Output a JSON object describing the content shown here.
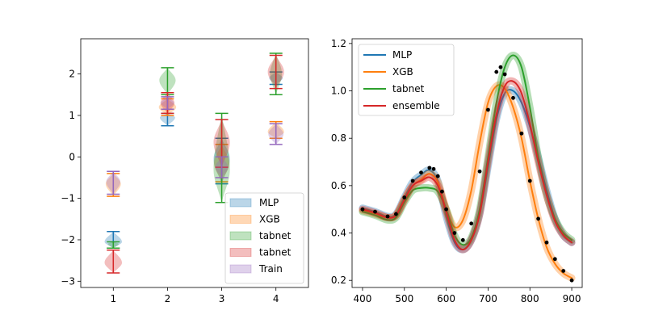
{
  "chart_data": [
    {
      "type": "violin",
      "categories": [
        "1",
        "2",
        "3",
        "4"
      ],
      "x_ticks": [
        "1",
        "2",
        "3",
        "4"
      ],
      "y_ticks": [
        "−3",
        "−2",
        "−1",
        "0",
        "1",
        "2"
      ],
      "xlim": [
        0.4,
        4.6
      ],
      "ylim": [
        -3.15,
        2.85
      ],
      "legend_position": "lower right",
      "legend": [
        "MLP",
        "XGB",
        "tabnet",
        "tabnet",
        "Train"
      ],
      "series": [
        {
          "name": "MLP",
          "color": "#1f77b4",
          "distributions": [
            {
              "x": 1,
              "center": -2.05,
              "min": -2.2,
              "max": -1.8,
              "width": 0.32
            },
            {
              "x": 2,
              "center": 0.95,
              "min": 0.75,
              "max": 1.05,
              "width": 0.28
            },
            {
              "x": 3,
              "center": -0.05,
              "min": -0.65,
              "max": 0.45,
              "width": 0.3
            },
            {
              "x": 4,
              "center": 1.9,
              "min": 1.75,
              "max": 2.05,
              "width": 0.25
            }
          ]
        },
        {
          "name": "XGB",
          "color": "#ff7f0e",
          "distributions": [
            {
              "x": 1,
              "center": -0.65,
              "min": -0.95,
              "max": -0.4,
              "width": 0.28
            },
            {
              "x": 2,
              "center": 1.2,
              "min": 1.0,
              "max": 1.4,
              "width": 0.32
            },
            {
              "x": 3,
              "center": -0.15,
              "min": -0.6,
              "max": 0.3,
              "width": 0.28
            },
            {
              "x": 4,
              "center": 0.6,
              "min": 0.45,
              "max": 0.85,
              "width": 0.3
            }
          ]
        },
        {
          "name": "tabnet",
          "color": "#2ca02c",
          "distributions": [
            {
              "x": 1,
              "center": -2.1,
              "min": -2.2,
              "max": -2.05,
              "width": 0.2
            },
            {
              "x": 2,
              "center": 1.85,
              "min": 1.5,
              "max": 2.15,
              "width": 0.3
            },
            {
              "x": 3,
              "center": -0.3,
              "min": -1.1,
              "max": 1.05,
              "width": 0.3
            },
            {
              "x": 4,
              "center": 2.0,
              "min": 1.5,
              "max": 2.5,
              "width": 0.22
            }
          ]
        },
        {
          "name": "tabnet",
          "color": "#d62728",
          "distributions": [
            {
              "x": 1,
              "center": -2.55,
              "min": -2.8,
              "max": -2.25,
              "width": 0.32
            },
            {
              "x": 2,
              "center": 1.3,
              "min": 1.05,
              "max": 1.55,
              "width": 0.26
            },
            {
              "x": 3,
              "center": 0.35,
              "min": -0.25,
              "max": 0.9,
              "width": 0.3
            },
            {
              "x": 4,
              "center": 2.05,
              "min": 1.65,
              "max": 2.45,
              "width": 0.3
            }
          ]
        },
        {
          "name": "Train",
          "color": "#9467bd",
          "distributions": [
            {
              "x": 1,
              "center": -0.6,
              "min": -0.9,
              "max": -0.35,
              "width": 0.26
            },
            {
              "x": 2,
              "center": 1.3,
              "min": 1.15,
              "max": 1.45,
              "width": 0.24
            },
            {
              "x": 3,
              "center": -0.25,
              "min": -0.5,
              "max": 0.0,
              "width": 0.24
            },
            {
              "x": 4,
              "center": 0.55,
              "min": 0.3,
              "max": 0.8,
              "width": 0.28
            }
          ]
        }
      ]
    },
    {
      "type": "line",
      "x_ticks": [
        "400",
        "500",
        "600",
        "700",
        "800",
        "900"
      ],
      "y_ticks": [
        "0.2",
        "0.4",
        "0.6",
        "0.8",
        "1.0",
        "1.2"
      ],
      "xlim": [
        375,
        925
      ],
      "ylim": [
        0.17,
        1.22
      ],
      "legend_position": "upper left",
      "legend": [
        "MLP",
        "XGB",
        "tabnet",
        "ensemble"
      ],
      "series": [
        {
          "name": "MLP",
          "color": "#1f77b4",
          "x": [
            400,
            430,
            460,
            480,
            500,
            520,
            540,
            560,
            580,
            600,
            620,
            640,
            660,
            680,
            700,
            720,
            740,
            760,
            780,
            800,
            820,
            840,
            860,
            880,
            900
          ],
          "y": [
            0.505,
            0.49,
            0.47,
            0.48,
            0.55,
            0.615,
            0.645,
            0.665,
            0.62,
            0.47,
            0.36,
            0.33,
            0.37,
            0.48,
            0.68,
            0.88,
            0.99,
            1.0,
            0.95,
            0.85,
            0.72,
            0.58,
            0.46,
            0.39,
            0.36
          ]
        },
        {
          "name": "XGB",
          "color": "#ff7f0e",
          "x": [
            400,
            430,
            460,
            480,
            500,
            520,
            540,
            560,
            580,
            600,
            620,
            640,
            660,
            680,
            700,
            720,
            740,
            760,
            780,
            800,
            820,
            840,
            860,
            880,
            900
          ],
          "y": [
            0.495,
            0.48,
            0.465,
            0.475,
            0.54,
            0.6,
            0.625,
            0.65,
            0.615,
            0.5,
            0.425,
            0.455,
            0.58,
            0.78,
            0.95,
            1.02,
            1.01,
            0.93,
            0.8,
            0.62,
            0.46,
            0.34,
            0.27,
            0.23,
            0.21
          ]
        },
        {
          "name": "tabnet",
          "color": "#2ca02c",
          "x": [
            400,
            430,
            460,
            480,
            500,
            520,
            540,
            560,
            580,
            600,
            620,
            640,
            660,
            680,
            700,
            720,
            740,
            760,
            780,
            800,
            820,
            840,
            860,
            880,
            900
          ],
          "y": [
            0.49,
            0.475,
            0.455,
            0.465,
            0.53,
            0.58,
            0.59,
            0.59,
            0.575,
            0.5,
            0.39,
            0.35,
            0.38,
            0.5,
            0.72,
            0.95,
            1.1,
            1.15,
            1.1,
            0.93,
            0.72,
            0.56,
            0.46,
            0.4,
            0.37
          ]
        },
        {
          "name": "ensemble",
          "color": "#d62728",
          "x": [
            400,
            430,
            460,
            480,
            500,
            520,
            540,
            560,
            580,
            600,
            620,
            640,
            660,
            680,
            700,
            720,
            740,
            760,
            780,
            800,
            820,
            840,
            860,
            880,
            900
          ],
          "y": [
            0.5,
            0.485,
            0.465,
            0.475,
            0.54,
            0.6,
            0.62,
            0.635,
            0.6,
            0.49,
            0.37,
            0.33,
            0.37,
            0.48,
            0.7,
            0.9,
            1.02,
            1.04,
            0.99,
            0.86,
            0.7,
            0.56,
            0.45,
            0.39,
            0.36
          ]
        },
        {
          "name": "",
          "color": "#000000",
          "marker": "dots",
          "x": [
            400,
            430,
            460,
            480,
            500,
            520,
            540,
            560,
            570,
            580,
            590,
            600,
            620,
            640,
            660,
            680,
            700,
            720,
            730,
            740,
            760,
            780,
            800,
            820,
            840,
            860,
            880,
            900
          ],
          "y": [
            0.5,
            0.49,
            0.47,
            0.48,
            0.55,
            0.62,
            0.655,
            0.675,
            0.67,
            0.64,
            0.575,
            0.5,
            0.4,
            0.37,
            0.44,
            0.66,
            0.92,
            1.08,
            1.1,
            1.07,
            0.97,
            0.82,
            0.62,
            0.46,
            0.36,
            0.29,
            0.24,
            0.2
          ]
        }
      ]
    }
  ]
}
